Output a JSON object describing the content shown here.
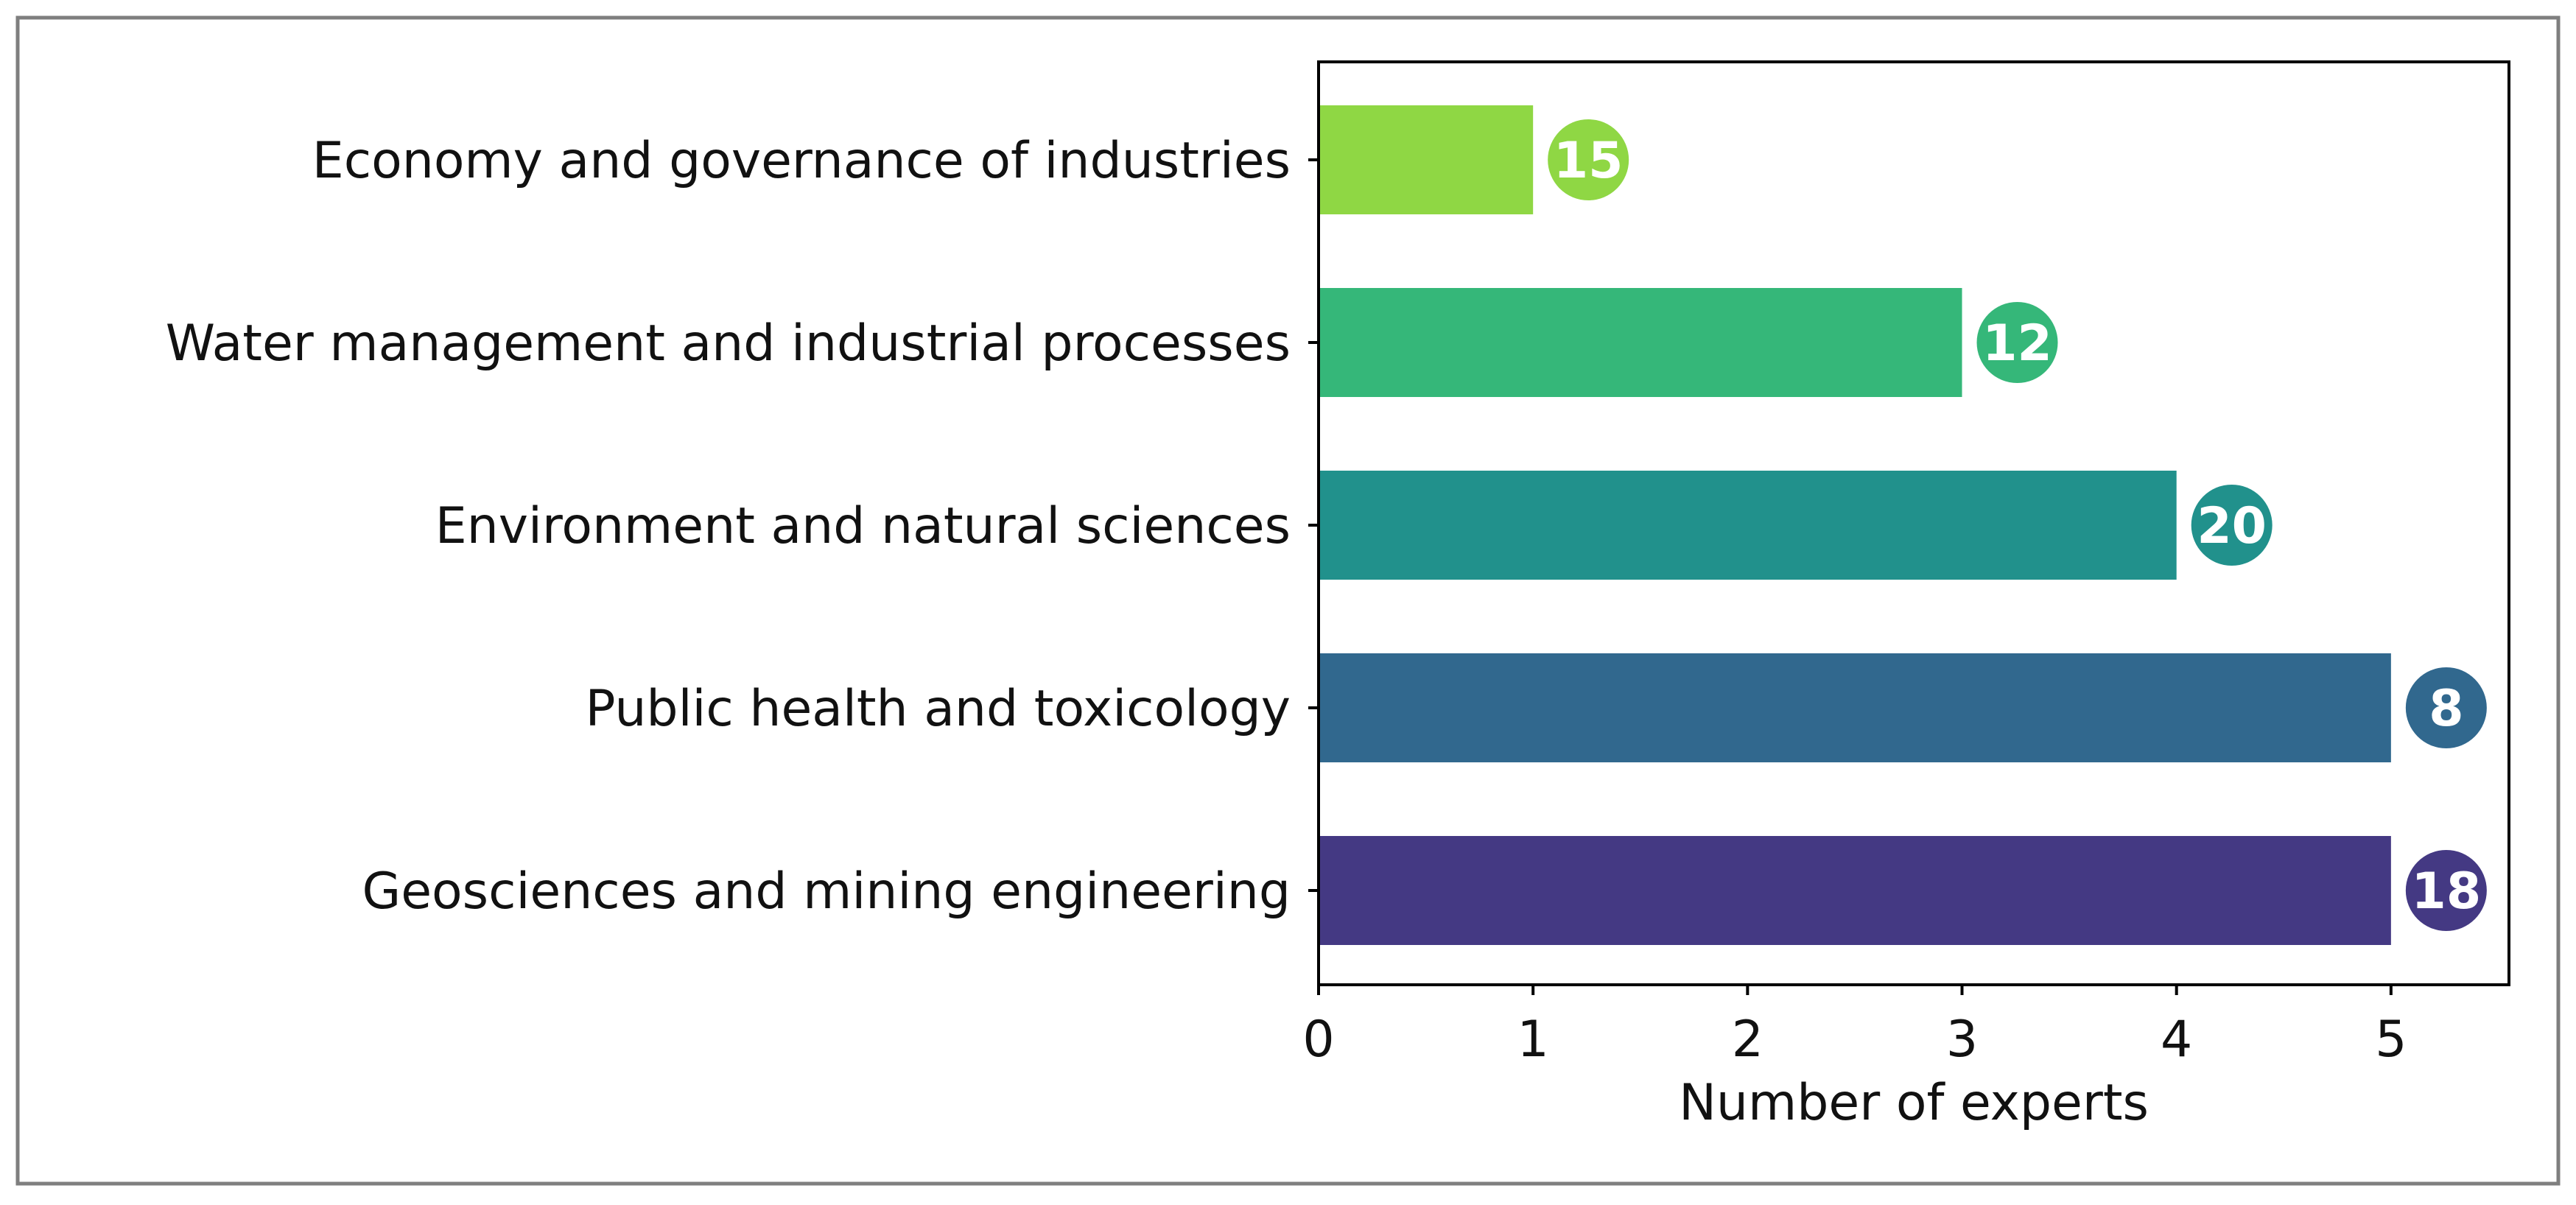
{
  "chart_data": {
    "type": "bar",
    "orientation": "horizontal",
    "title": "",
    "xlabel": "Number of experts",
    "ylabel": "",
    "xlim": [
      0,
      5.55
    ],
    "xticks": [
      "0",
      "1",
      "2",
      "3",
      "4",
      "5"
    ],
    "categories": [
      "Economy and governance of industries",
      "Water management and industrial processes",
      "Environment and natural sciences",
      "Public health and toxicology",
      "Geosciences and mining engineering"
    ],
    "values": [
      1,
      3,
      4,
      5,
      5
    ],
    "badges": [
      "15",
      "12",
      "20",
      "8",
      "18"
    ],
    "colors": [
      "#8fd744",
      "#35b779",
      "#21918c",
      "#31688e",
      "#443983"
    ],
    "grid": false,
    "legend": "none"
  },
  "frame": {
    "border_color": "#7f7f7f"
  }
}
